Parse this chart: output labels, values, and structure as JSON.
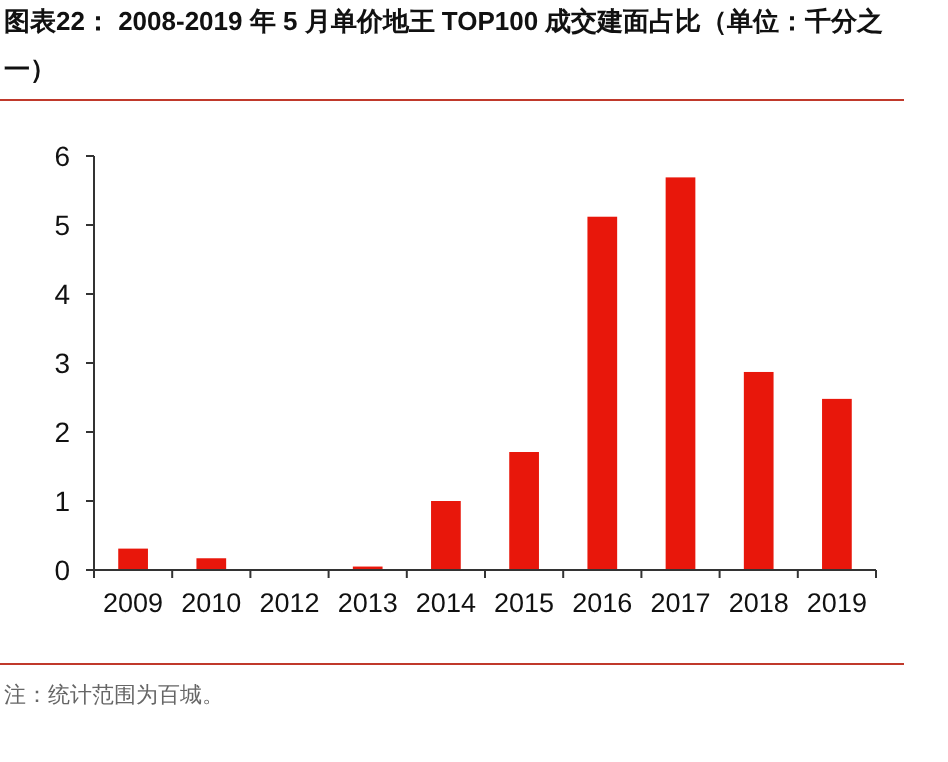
{
  "chart_data": {
    "type": "bar",
    "title": "图表22：  2008-2019 年 5 月单价地王 TOP100 成交建面占比（单位：千分之一）",
    "categories": [
      "2009",
      "2010",
      "2012",
      "2013",
      "2014",
      "2015",
      "2016",
      "2017",
      "2018",
      "2019"
    ],
    "values": [
      0.31,
      0.17,
      0,
      0.05,
      1.0,
      1.71,
      5.12,
      5.69,
      2.87,
      2.48
    ],
    "color": "#e8170b",
    "ylim": [
      0,
      6
    ],
    "yticks": [
      0,
      1,
      2,
      3,
      4,
      5,
      6
    ],
    "grid": false,
    "annotations": [
      "注：统计范围为百城。"
    ]
  }
}
